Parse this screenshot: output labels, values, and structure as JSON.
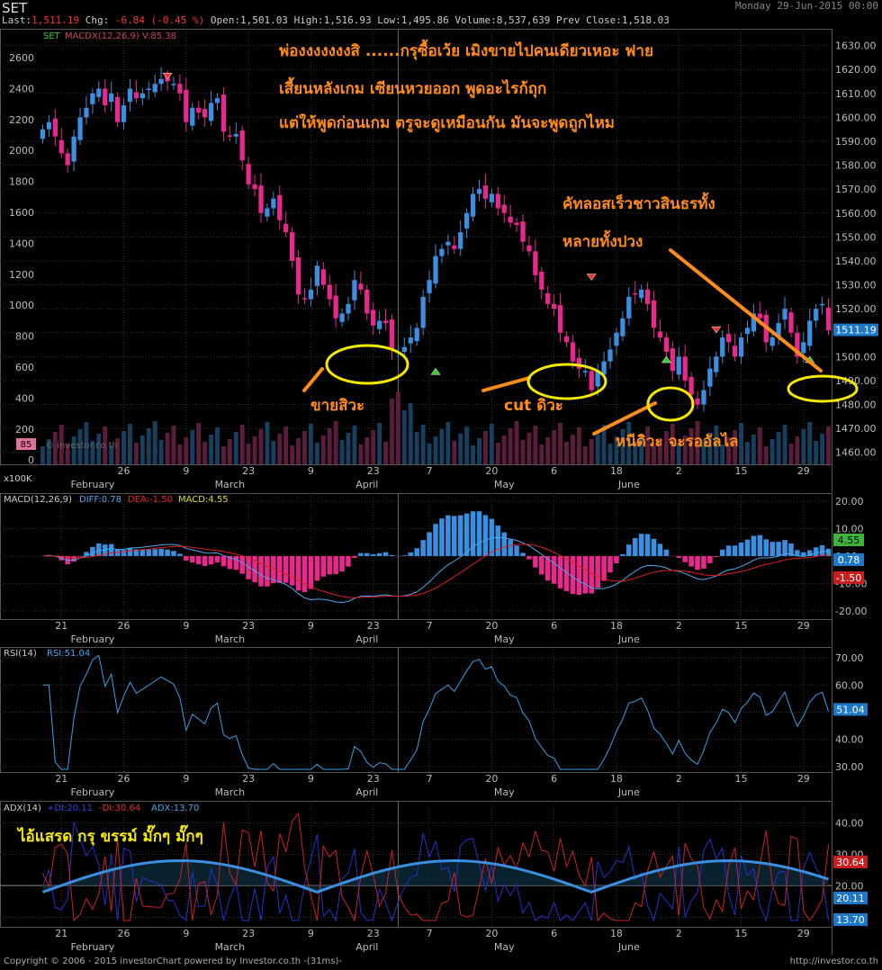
{
  "header": {
    "symbol": "SET",
    "date": "Monday 29-Jun-2015 00:00",
    "last_label": "Last:",
    "last": "1,511.19",
    "chg_label": "Chg:",
    "chg": "-6.84 (-0.45 %)",
    "open_label": "Open:",
    "open": "1,501.03",
    "high_label": "High:",
    "high": "1,516.93",
    "low_label": "Low:",
    "low": "1,495.86",
    "volume_label": "Volume:",
    "volume": "8,537,639",
    "prevclose_label": "Prev Close:",
    "prevclose": "1,518.03"
  },
  "footer": {
    "copyright": "Copyright © 2006 - 2015 investorChart powered by Investor.co.th -(31ms)-",
    "url": "http://investor.co.th"
  },
  "colors": {
    "up": "#3a8fe0",
    "down": "#e8288c",
    "orange": "#ff8c1a",
    "yellow": "#f5e900",
    "grid": "#333333",
    "macd_diff": "#4aa8ee",
    "macd_dea": "#e02020",
    "rsi": "#3aa0e8",
    "adx": "#3a8fe0",
    "pdi": "#2233cc",
    "mdi": "#cc2222"
  },
  "chart_data": [
    {
      "type": "candlestick",
      "panel_label": "SET",
      "overlay_label": "MACDX(12,26,9) V:85.38",
      "watermark": "© investor.co.th",
      "volume_label": "85",
      "volume_unit": "x100K",
      "last_price_tag": "1511.19",
      "x_ticks": [
        "26",
        "9",
        "23",
        "9",
        "23",
        "7",
        "20",
        "6",
        "18",
        "2",
        "15",
        "29"
      ],
      "month_labels": [
        "February",
        "March",
        "April",
        "May",
        "June"
      ],
      "left_ticks": [
        "2600",
        "2400",
        "2200",
        "2000",
        "1800",
        "1600",
        "1400",
        "1200",
        "1000",
        "800",
        "600",
        "400",
        "200",
        "0"
      ],
      "right_ticks": [
        "1630.00",
        "1620.00",
        "1610.00",
        "1600.00",
        "1590.00",
        "1580.00",
        "1570.00",
        "1560.00",
        "1550.00",
        "1540.00",
        "1530.00",
        "1520.00",
        "1510.00",
        "1500.00",
        "1490.00",
        "1480.00",
        "1470.00",
        "1460.00"
      ],
      "ylim": [
        1455,
        1637
      ],
      "closes": [
        1595,
        1598,
        1592,
        1585,
        1580,
        1592,
        1600,
        1604,
        1610,
        1612,
        1605,
        1610,
        1598,
        1605,
        1612,
        1608,
        1610,
        1612,
        1614,
        1616,
        1615,
        1614,
        1610,
        1598,
        1604,
        1602,
        1600,
        1606,
        1608,
        1594,
        1592,
        1593,
        1582,
        1572,
        1570,
        1560,
        1562,
        1566,
        1557,
        1552,
        1540,
        1526,
        1524,
        1528,
        1538,
        1530,
        1524,
        1516,
        1518,
        1522,
        1532,
        1528,
        1518,
        1513,
        1515,
        1514,
        1503,
        1502,
        1504,
        1508,
        1512,
        1525,
        1532,
        1542,
        1545,
        1548,
        1545,
        1552,
        1560,
        1568,
        1570,
        1566,
        1568,
        1562,
        1560,
        1556,
        1555,
        1548,
        1544,
        1534,
        1528,
        1522,
        1520,
        1510,
        1506,
        1498,
        1495,
        1494,
        1486,
        1494,
        1498,
        1503,
        1510,
        1516,
        1525,
        1526,
        1528,
        1522,
        1512,
        1508,
        1502,
        1494,
        1500,
        1490,
        1484,
        1480,
        1486,
        1495,
        1500,
        1508,
        1506,
        1500,
        1508,
        1512,
        1518,
        1516,
        1506,
        1508,
        1514,
        1520,
        1510,
        1500,
        1506,
        1515,
        1520,
        1522,
        1511
      ],
      "annotations": [
        {
          "text": "พ่องงงงงงงสิ      ......กรุซื้อเว้ย  เมิงขายไปคนเดียวเหอะ  ฟาย"
        },
        {
          "text": "เสี้ยนหลังเกม  เซียนหวยออก  พูดอะไรก้ถุก"
        },
        {
          "text": "แต่ให้พูดก่อนเกม  ตรูจะดูเหมือนกัน  มันจะพูดถูกไหม"
        },
        {
          "text": "คัทลอสเร็วชาวสินธรทั้ง"
        },
        {
          "text": "หลายทั้งปวง"
        },
        {
          "text": "ขายสิวะ"
        },
        {
          "text": "cut ดิวะ"
        },
        {
          "text": "หนีดิวะ  จะรออัลไล"
        }
      ]
    },
    {
      "type": "bar+line",
      "panel_label": "MACD(12,26,9)",
      "diff_label": "DIFF:0.78",
      "dea_label": "DEA:-1.50",
      "macd_label": "MACD:4.55",
      "tags": [
        "4.55",
        "0.78",
        "-1.50"
      ],
      "right_ticks": [
        "20.00",
        "10.00",
        "0.00",
        "-10.00",
        "-20.00"
      ],
      "ylim": [
        -23,
        23
      ],
      "x_ticks": [
        "21",
        "26",
        "9",
        "23",
        "9",
        "23",
        "7",
        "20",
        "6",
        "18",
        "2",
        "15",
        "29"
      ]
    },
    {
      "type": "line",
      "panel_label": "RSI(14)",
      "rsi_label": "RSI:51.04",
      "tag": "51.04",
      "right_ticks": [
        "70.00",
        "60.00",
        "50.00",
        "40.00",
        "30.00"
      ],
      "ylim": [
        28,
        74
      ],
      "x_ticks": [
        "21",
        "26",
        "9",
        "23",
        "9",
        "23",
        "7",
        "20",
        "6",
        "18",
        "2",
        "15",
        "29"
      ]
    },
    {
      "type": "line",
      "panel_label": "ADX(14)",
      "pdi_label": "+DI:20.11",
      "mdi_label": "-DI:30.64",
      "adx_label": "ADX:13.70",
      "tags": [
        "30.64",
        "20.11",
        "13.70"
      ],
      "right_ticks": [
        "40.00",
        "30.00",
        "20.00",
        "10.00"
      ],
      "ylim": [
        7,
        47
      ],
      "annotation": "ไอ้แสรด  กรุ  ขรรม์  มั๊กๆ  มั๊กๆ",
      "x_ticks": [
        "21",
        "26",
        "9",
        "23",
        "9",
        "23",
        "7",
        "20",
        "6",
        "18",
        "2",
        "15",
        "29"
      ]
    }
  ]
}
